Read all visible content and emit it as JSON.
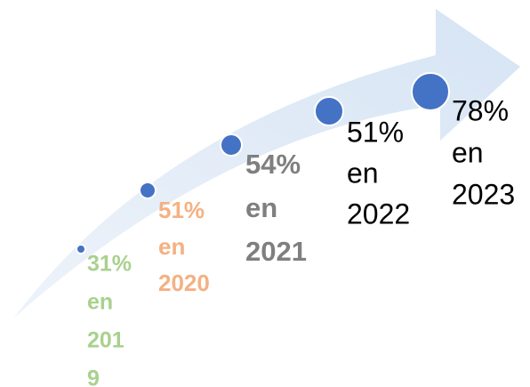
{
  "items": [
    {
      "lines": [
        "31%",
        "en",
        "201",
        "9"
      ],
      "color": "#a9d18e",
      "bold": true
    },
    {
      "lines": [
        "51%",
        "en",
        "2020"
      ],
      "color": "#f4b183",
      "bold": true
    },
    {
      "lines": [
        "54%",
        "en",
        "2021"
      ],
      "color": "#7f7f7f",
      "bold": true
    },
    {
      "lines": [
        "51%",
        "en",
        "2022"
      ],
      "color": "#000000",
      "bold": false
    },
    {
      "lines": [
        "78%",
        "en",
        "2023"
      ],
      "color": "#000000",
      "bold": false
    }
  ]
}
